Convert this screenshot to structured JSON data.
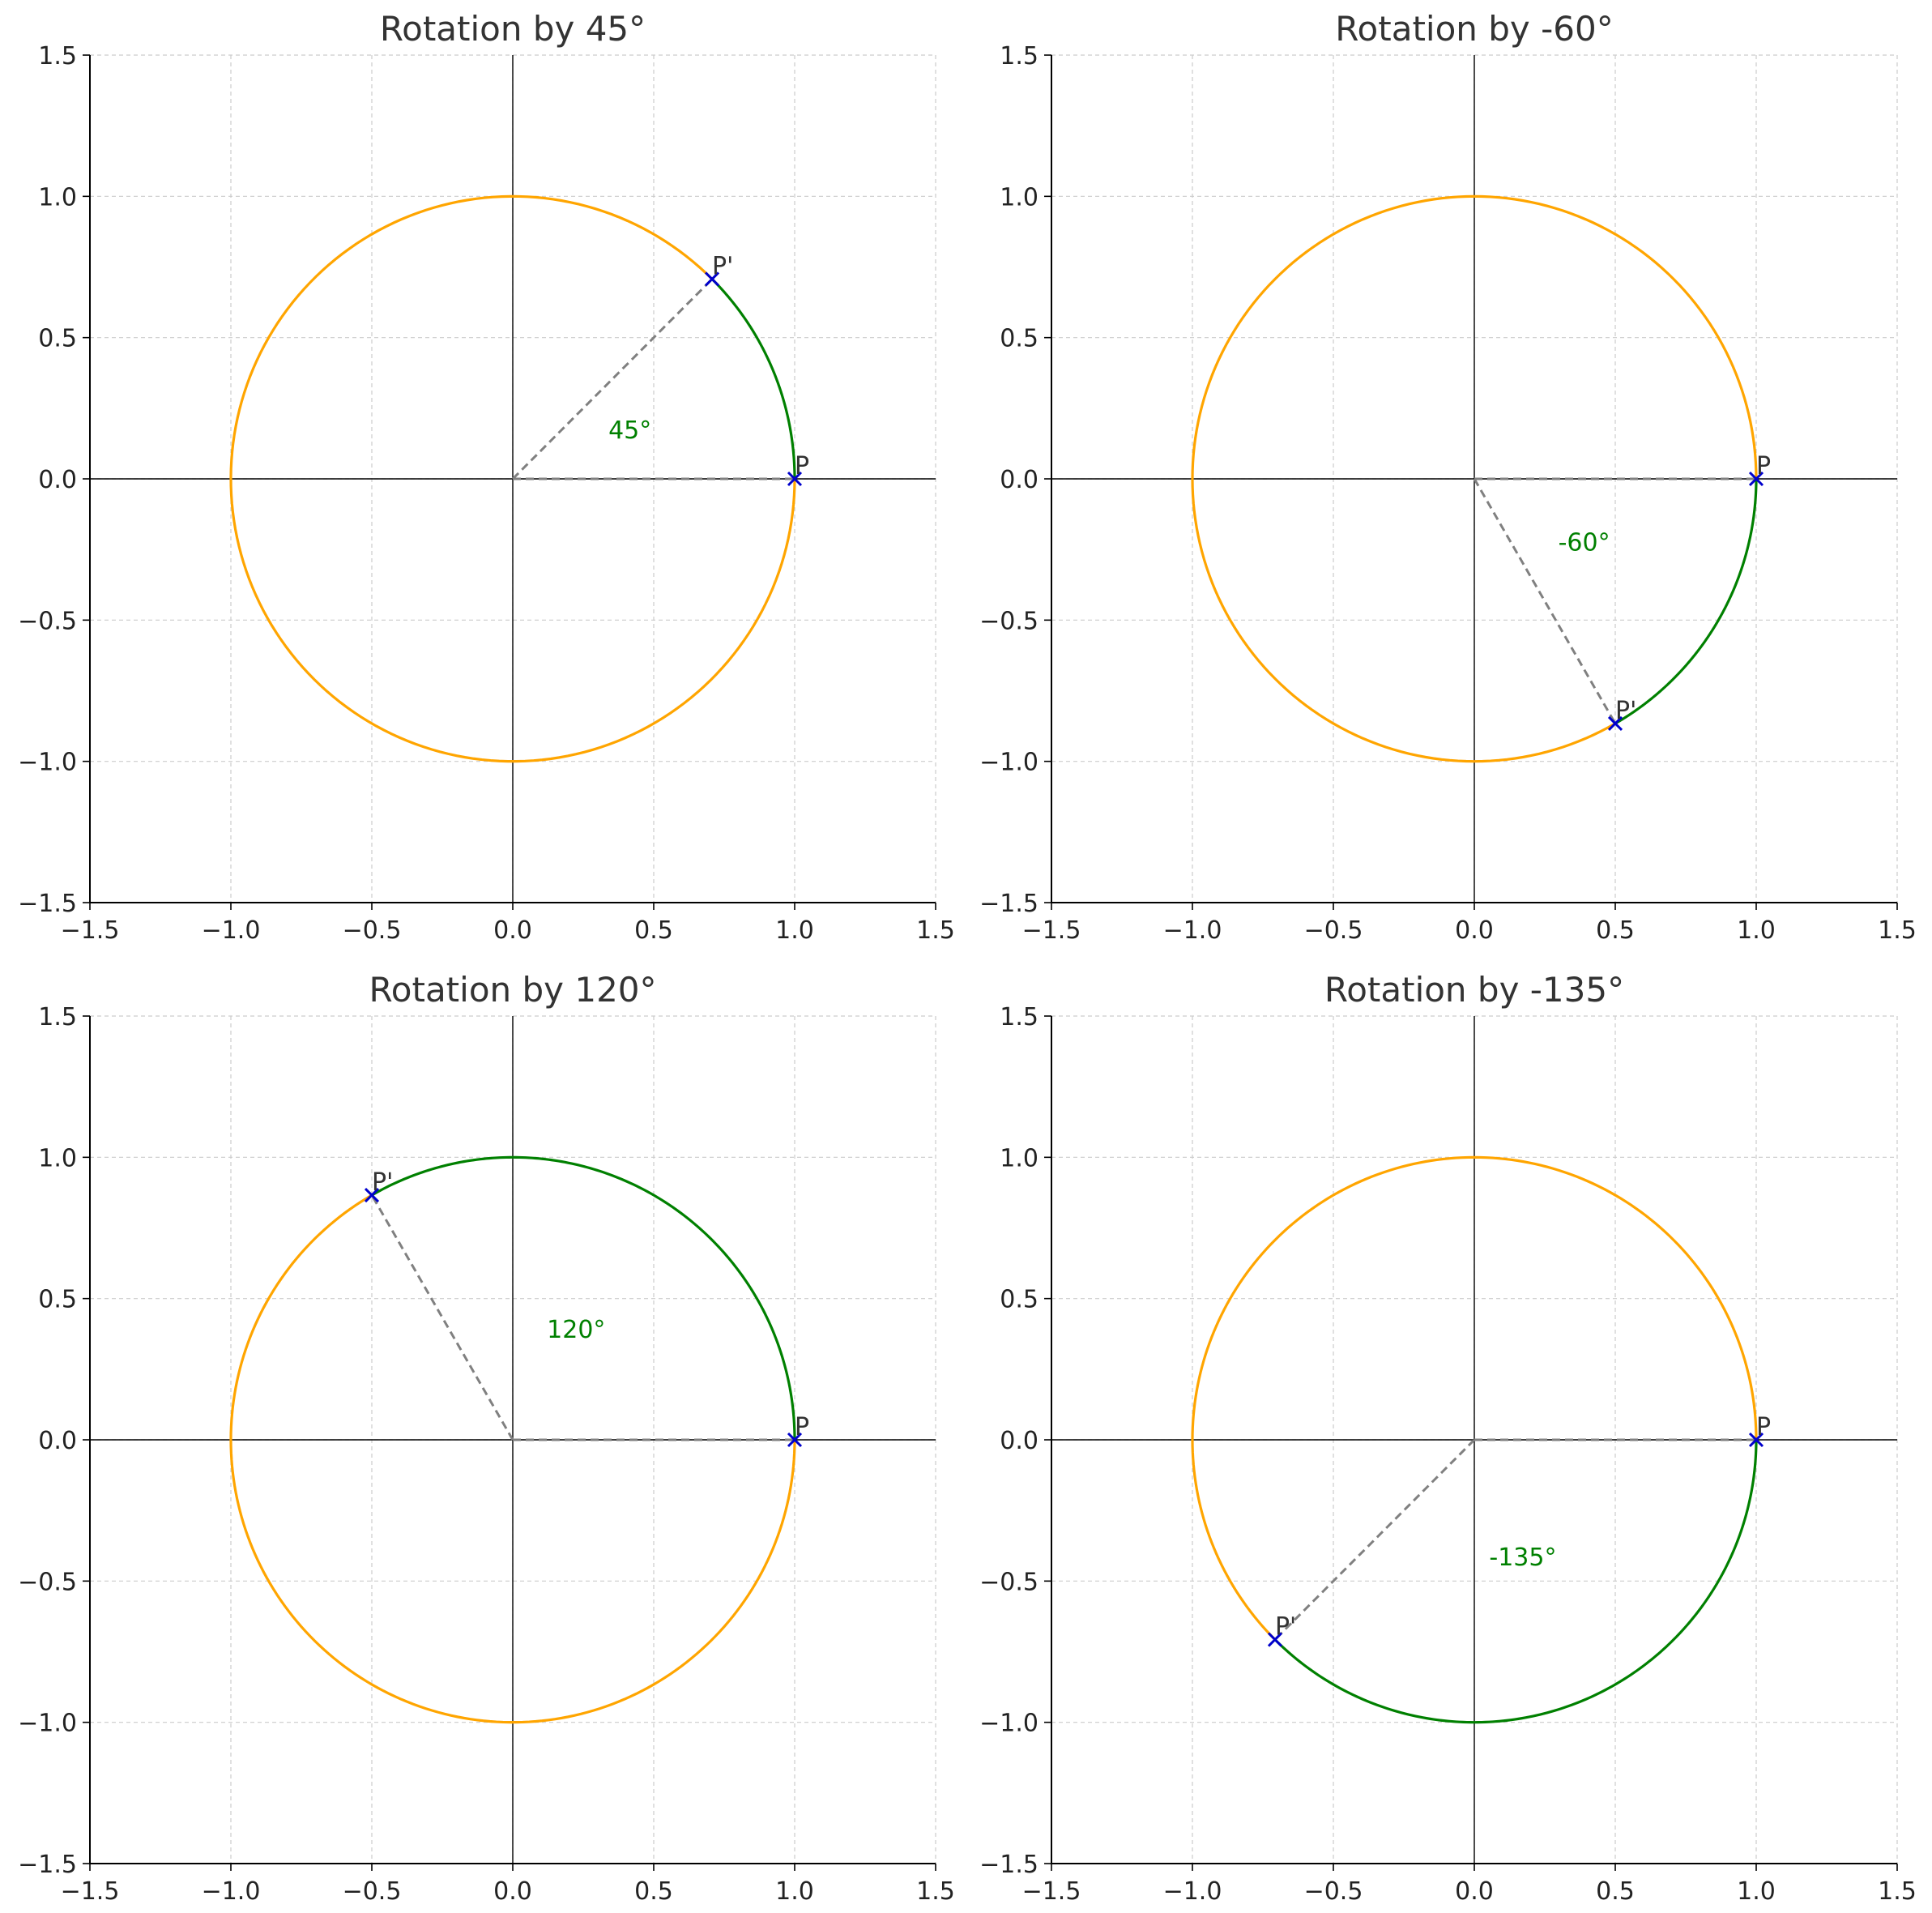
{
  "chart_data": [
    {
      "type": "line",
      "title": "Rotation by 45°",
      "angle_deg": 45,
      "angle_label": "45°",
      "xlim": [
        -1.5,
        1.5
      ],
      "ylim": [
        -1.5,
        1.5
      ],
      "ticks": [
        -1.5,
        -1.0,
        -0.5,
        0.0,
        0.5,
        1.0,
        1.5
      ],
      "tick_labels": [
        "−1.5",
        "−1.0",
        "−0.5",
        "0.0",
        "0.5",
        "1.0",
        "1.5"
      ],
      "grid": true,
      "circle": {
        "center": [
          0,
          0
        ],
        "radius": 1
      },
      "points": [
        {
          "label": "P",
          "x": 1.0,
          "y": 0.0
        },
        {
          "label": "P'",
          "x": 0.707,
          "y": 0.707
        }
      ]
    },
    {
      "type": "line",
      "title": "Rotation by -60°",
      "angle_deg": -60,
      "angle_label": "-60°",
      "xlim": [
        -1.5,
        1.5
      ],
      "ylim": [
        -1.5,
        1.5
      ],
      "ticks": [
        -1.5,
        -1.0,
        -0.5,
        0.0,
        0.5,
        1.0,
        1.5
      ],
      "tick_labels": [
        "−1.5",
        "−1.0",
        "−0.5",
        "0.0",
        "0.5",
        "1.0",
        "1.5"
      ],
      "grid": true,
      "circle": {
        "center": [
          0,
          0
        ],
        "radius": 1
      },
      "points": [
        {
          "label": "P",
          "x": 1.0,
          "y": 0.0
        },
        {
          "label": "P'",
          "x": 0.5,
          "y": -0.866
        }
      ]
    },
    {
      "type": "line",
      "title": "Rotation by 120°",
      "angle_deg": 120,
      "angle_label": "120°",
      "xlim": [
        -1.5,
        1.5
      ],
      "ylim": [
        -1.5,
        1.5
      ],
      "ticks": [
        -1.5,
        -1.0,
        -0.5,
        0.0,
        0.5,
        1.0,
        1.5
      ],
      "tick_labels": [
        "−1.5",
        "−1.0",
        "−0.5",
        "0.0",
        "0.5",
        "1.0",
        "1.5"
      ],
      "grid": true,
      "circle": {
        "center": [
          0,
          0
        ],
        "radius": 1
      },
      "points": [
        {
          "label": "P",
          "x": 1.0,
          "y": 0.0
        },
        {
          "label": "P'",
          "x": -0.5,
          "y": 0.866
        }
      ]
    },
    {
      "type": "line",
      "title": "Rotation by -135°",
      "angle_deg": -135,
      "angle_label": "-135°",
      "xlim": [
        -1.5,
        1.5
      ],
      "ylim": [
        -1.5,
        1.5
      ],
      "ticks": [
        -1.5,
        -1.0,
        -0.5,
        0.0,
        0.5,
        1.0,
        1.5
      ],
      "tick_labels": [
        "−1.5",
        "−1.0",
        "−0.5",
        "0.0",
        "0.5",
        "1.0",
        "1.5"
      ],
      "grid": true,
      "circle": {
        "center": [
          0,
          0
        ],
        "radius": 1
      },
      "points": [
        {
          "label": "P",
          "x": 1.0,
          "y": 0.0
        },
        {
          "label": "P'",
          "x": -0.707,
          "y": -0.707
        }
      ]
    }
  ],
  "colors": {
    "arc_rotation": "#008000",
    "arc_remainder": "#FFA500",
    "radius_line": "#808080",
    "point_marker": "#0000CC",
    "angle_text": "#008000",
    "grid": "#cccccc",
    "axis_line": "#000000"
  }
}
